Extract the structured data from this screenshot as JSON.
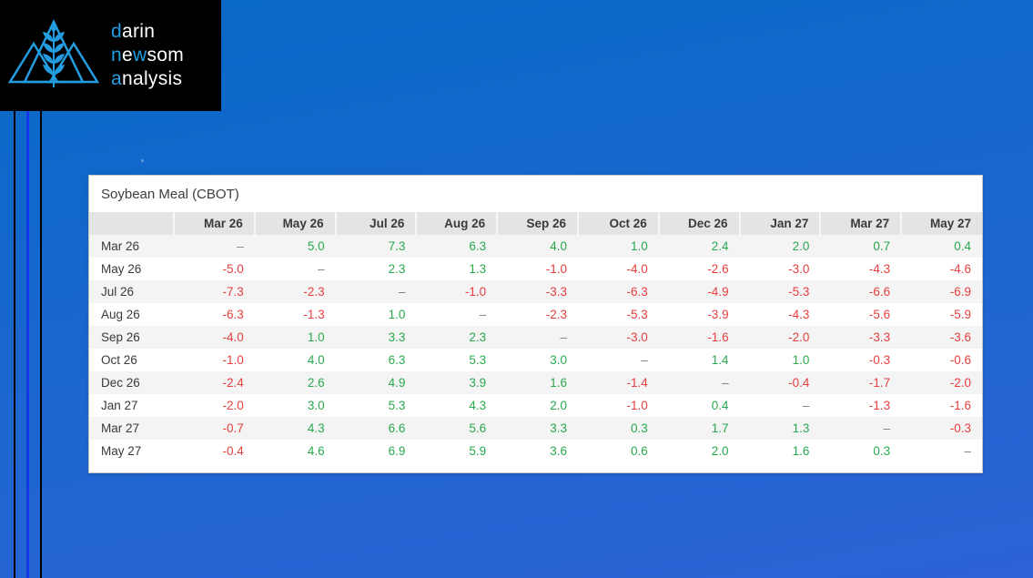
{
  "logo": {
    "icon_name": "mountains-wheat-icon",
    "lines": [
      [
        {
          "text": "d",
          "accent": true
        },
        {
          "text": "arin",
          "accent": false
        }
      ],
      [
        {
          "text": "n",
          "accent": true
        },
        {
          "text": "e",
          "accent": false
        },
        {
          "text": "w",
          "accent": true
        },
        {
          "text": "som",
          "accent": false
        }
      ],
      [
        {
          "text": "a",
          "accent": true
        },
        {
          "text": "nalysis",
          "accent": false
        }
      ]
    ]
  },
  "colors": {
    "accent_blue": "#249de0",
    "stripe_blue": "#1537ec",
    "positive": "#29a94e",
    "negative": "#e73e3e",
    "dash": "#7f7f7f"
  },
  "chart_data": {
    "type": "table",
    "title": "Soybean Meal (CBOT)",
    "columns": [
      "Mar 26",
      "May 26",
      "Jul 26",
      "Aug 26",
      "Sep 26",
      "Oct 26",
      "Dec 26",
      "Jan 27",
      "Mar 27",
      "May 27"
    ],
    "row_labels": [
      "Mar 26",
      "May 26",
      "Jul 26",
      "Aug 26",
      "Sep 26",
      "Oct 26",
      "Dec 26",
      "Jan 27",
      "Mar 27",
      "May 27"
    ],
    "matrix": [
      [
        null,
        5.0,
        7.3,
        6.3,
        4.0,
        1.0,
        2.4,
        2.0,
        0.7,
        0.4
      ],
      [
        -5.0,
        null,
        2.3,
        1.3,
        -1.0,
        -4.0,
        -2.6,
        -3.0,
        -4.3,
        -4.6
      ],
      [
        -7.3,
        -2.3,
        null,
        -1.0,
        -3.3,
        -6.3,
        -4.9,
        -5.3,
        -6.6,
        -6.9
      ],
      [
        -6.3,
        -1.3,
        1.0,
        null,
        -2.3,
        -5.3,
        -3.9,
        -4.3,
        -5.6,
        -5.9
      ],
      [
        -4.0,
        1.0,
        3.3,
        2.3,
        null,
        -3.0,
        -1.6,
        -2.0,
        -3.3,
        -3.6
      ],
      [
        -1.0,
        4.0,
        6.3,
        5.3,
        3.0,
        null,
        1.4,
        1.0,
        -0.3,
        -0.6
      ],
      [
        -2.4,
        2.6,
        4.9,
        3.9,
        1.6,
        -1.4,
        null,
        -0.4,
        -1.7,
        -2.0
      ],
      [
        -2.0,
        3.0,
        5.3,
        4.3,
        2.0,
        -1.0,
        0.4,
        null,
        -1.3,
        -1.6
      ],
      [
        -0.7,
        4.3,
        6.6,
        5.6,
        3.3,
        0.3,
        1.7,
        1.3,
        null,
        -0.3
      ],
      [
        -0.4,
        4.6,
        6.9,
        5.9,
        3.6,
        0.6,
        2.0,
        1.6,
        0.3,
        null
      ]
    ],
    "null_display": "–",
    "value_decimals": 1,
    "positive_color": "#29a94e",
    "negative_color": "#e73e3e"
  }
}
